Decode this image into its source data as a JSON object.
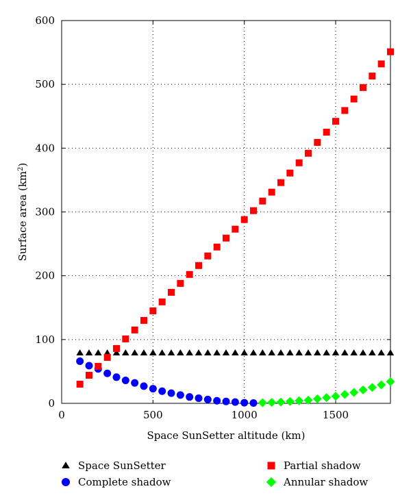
{
  "chart_data": {
    "type": "scatter",
    "xlabel": "Space SunSetter altitude (km)",
    "ylabel": "Surface area (km",
    "ylabel_sup": "2",
    "ylabel_close": ")",
    "xlim": [
      0,
      1800
    ],
    "ylim": [
      0,
      600
    ],
    "xticks": [
      0,
      500,
      1000,
      1500
    ],
    "yticks": [
      0,
      100,
      200,
      300,
      400,
      500,
      600
    ],
    "grid": "dotted",
    "legend_position": "bottom",
    "series": [
      {
        "name": "Space SunSetter",
        "marker": "triangle",
        "color": "#000000",
        "x": [
          100,
          150,
          200,
          250,
          300,
          350,
          400,
          450,
          500,
          550,
          600,
          650,
          700,
          750,
          800,
          850,
          900,
          950,
          1000,
          1050,
          1100,
          1150,
          1200,
          1250,
          1300,
          1350,
          1400,
          1450,
          1500,
          1550,
          1600,
          1650,
          1700,
          1750,
          1800
        ],
        "y": [
          79,
          79,
          79,
          79,
          79,
          79,
          79,
          79,
          79,
          79,
          79,
          79,
          79,
          79,
          79,
          79,
          79,
          79,
          79,
          79,
          79,
          79,
          79,
          79,
          79,
          79,
          79,
          79,
          79,
          79,
          79,
          79,
          79,
          79,
          79
        ]
      },
      {
        "name": "Complete shadow",
        "marker": "circle",
        "color": "#0000ff",
        "x": [
          100,
          150,
          200,
          250,
          300,
          350,
          400,
          450,
          500,
          550,
          600,
          650,
          700,
          750,
          800,
          850,
          900,
          950,
          1000,
          1050
        ],
        "y": [
          66,
          59,
          54,
          47,
          41,
          36,
          32,
          27,
          23,
          19,
          16,
          13,
          10,
          8,
          6,
          4,
          3,
          2,
          1,
          0.5
        ]
      },
      {
        "name": "Partial shadow",
        "marker": "square",
        "color": "#ff0000",
        "x": [
          100,
          150,
          200,
          250,
          300,
          350,
          400,
          450,
          500,
          550,
          600,
          650,
          700,
          750,
          800,
          850,
          900,
          950,
          1000,
          1050,
          1100,
          1150,
          1200,
          1250,
          1300,
          1350,
          1400,
          1450,
          1500,
          1550,
          1600,
          1650,
          1700,
          1750,
          1800
        ],
        "y": [
          30,
          44,
          58,
          72,
          86,
          101,
          115,
          130,
          145,
          159,
          174,
          188,
          202,
          216,
          231,
          245,
          259,
          273,
          288,
          302,
          317,
          331,
          346,
          361,
          377,
          392,
          409,
          425,
          442,
          459,
          477,
          495,
          513,
          532,
          551
        ]
      },
      {
        "name": "Annular shadow",
        "marker": "diamond",
        "color": "#00ff00",
        "x": [
          1100,
          1150,
          1200,
          1250,
          1300,
          1350,
          1400,
          1450,
          1500,
          1550,
          1600,
          1650,
          1700,
          1750,
          1800
        ],
        "y": [
          1,
          1.5,
          2,
          3,
          4,
          5,
          7,
          9,
          11,
          14,
          17,
          21,
          25,
          29,
          34
        ]
      }
    ]
  }
}
